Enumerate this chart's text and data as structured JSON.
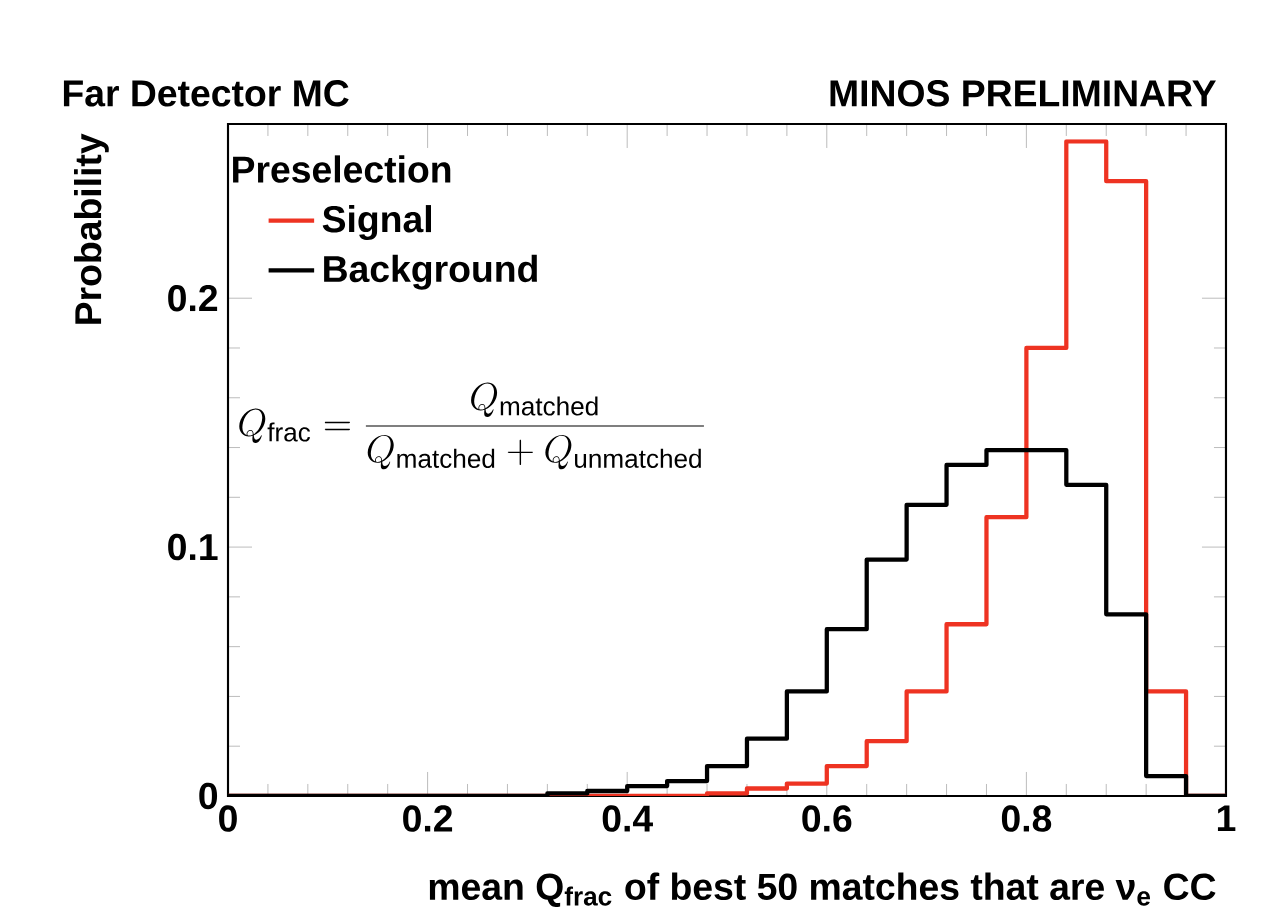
{
  "chart_data": {
    "type": "histogram",
    "title": "Far Detector MC",
    "xlabel": "mean Q$_{frac}$ of best 50 matches that are ν$_{e}$ CC",
    "ylabel": "Probability",
    "legend_title": "Preselection",
    "annotations": [
      "MINOS PRELIMINARY",
      "Q_{\\mathrm{frac}}=\\frac{Q_{\\mathrm{matched}}}{Q_{\\mathrm{matched}}+Q_{\\mathrm{unmatched}}}"
    ],
    "bins": [
      0,
      0.04,
      0.08,
      0.12,
      0.16,
      0.2,
      0.24,
      0.28,
      0.32,
      0.36,
      0.4,
      0.44,
      0.48,
      0.52,
      0.56,
      0.6,
      0.64,
      0.68,
      0.72,
      0.76,
      0.8,
      0.84,
      0.88,
      0.92,
      0.96,
      1
    ],
    "series": [
      {
        "name": "Signal",
        "color": "#ee3322",
        "values": [
          0,
          0,
          0,
          0,
          0,
          0,
          0,
          0,
          0,
          0,
          0,
          0,
          0.001,
          0.003,
          0.005,
          0.012,
          0.022,
          0.042,
          0.069,
          0.112,
          0.18,
          0.263,
          0.247,
          0.042,
          0
        ]
      },
      {
        "name": "Background",
        "color": "#000000",
        "values": [
          0,
          0,
          0,
          0,
          0,
          0,
          0,
          0,
          0.001,
          0.002,
          0.004,
          0.006,
          0.012,
          0.023,
          0.042,
          0.067,
          0.095,
          0.117,
          0.133,
          0.139,
          0.139,
          0.125,
          0.073,
          0.008,
          0
        ]
      }
    ],
    "xlim": [
      0,
      1
    ],
    "ylim": [
      0,
      0.27
    ],
    "xticks": [
      0,
      0.2,
      0.4,
      0.6,
      0.8,
      1
    ],
    "yticks": [
      0,
      0.1,
      0.2
    ],
    "legend": "top left",
    "grid": false
  }
}
